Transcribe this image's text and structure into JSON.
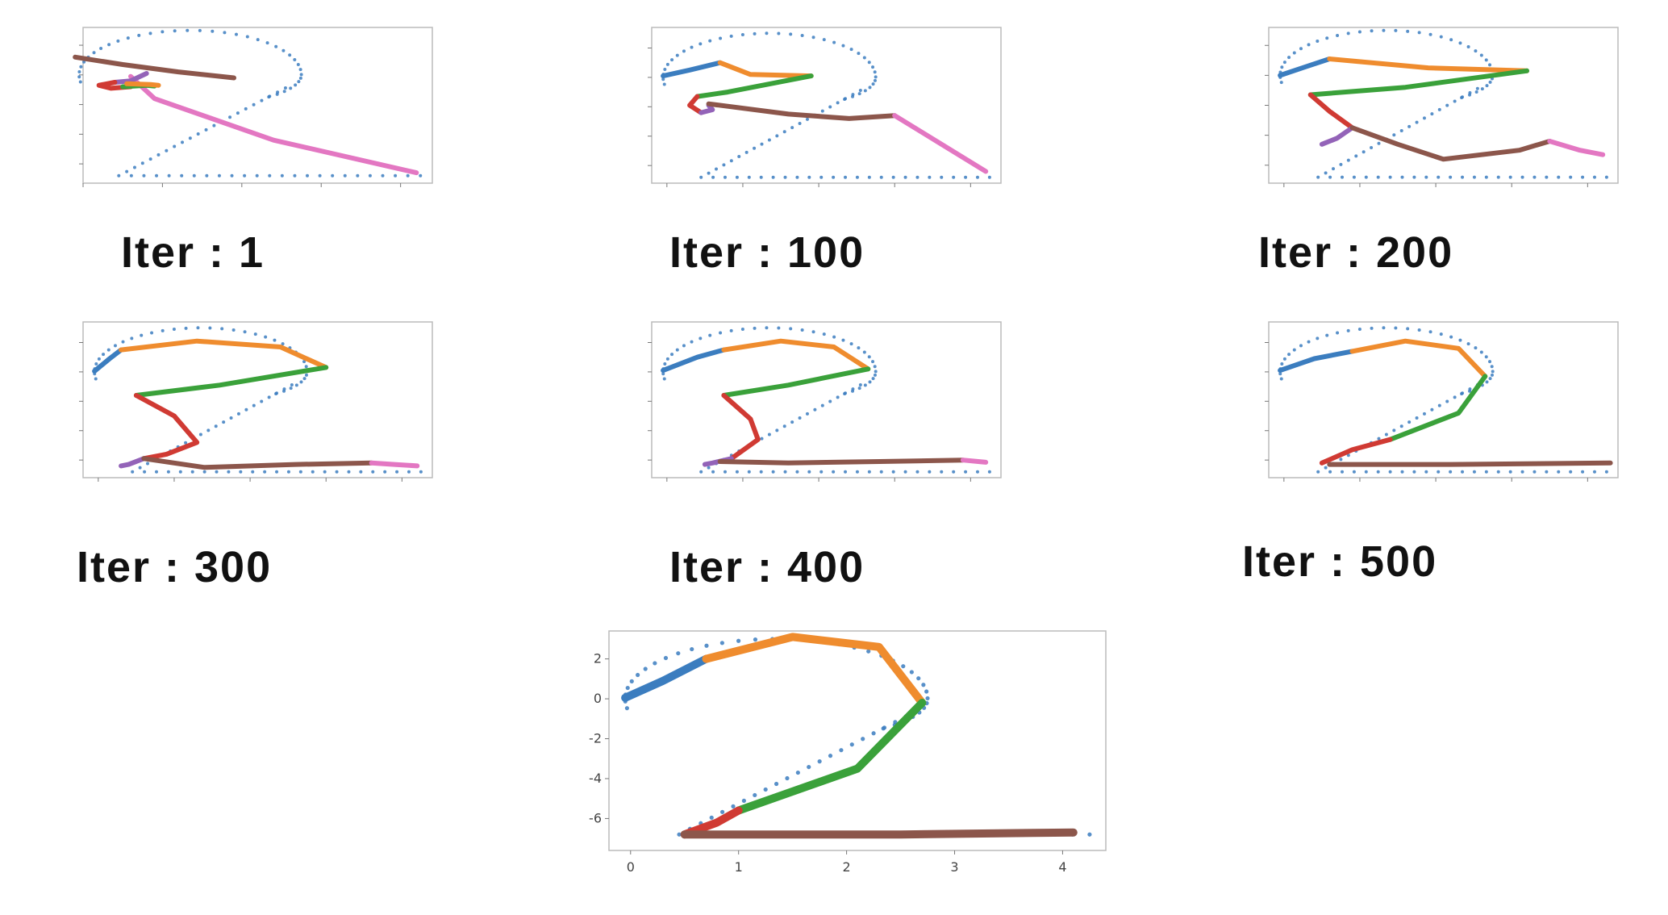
{
  "colors": {
    "target": "#3b7dbf",
    "seg1": "#3b7dbf",
    "seg2": "#ef8c2e",
    "seg3": "#3aa13a",
    "seg4": "#d03a33",
    "seg5": "#9363b8",
    "seg6": "#8c564b",
    "seg7": "#e377c2"
  },
  "chart_data": [
    {
      "type": "line",
      "caption": "Iter : 1",
      "xlim": [
        0,
        4.4
      ],
      "ylim": [
        -7.3,
        3.2
      ],
      "series": [
        {
          "color": "seg7",
          "points": [
            [
              0.6,
              -0.1
            ],
            [
              0.9,
              -1.6
            ],
            [
              2.4,
              -4.4
            ],
            [
              4.2,
              -6.6
            ]
          ]
        },
        {
          "color": "seg6",
          "points": [
            [
              -0.1,
              1.2
            ],
            [
              0.5,
              0.7
            ],
            [
              1.2,
              0.2
            ],
            [
              1.9,
              -0.2
            ]
          ]
        },
        {
          "color": "seg5",
          "points": [
            [
              0.8,
              0.1
            ],
            [
              0.6,
              -0.4
            ],
            [
              0.4,
              -0.5
            ]
          ]
        },
        {
          "color": "seg4",
          "points": [
            [
              0.4,
              -0.5
            ],
            [
              0.2,
              -0.7
            ],
            [
              0.35,
              -0.9
            ],
            [
              0.6,
              -0.8
            ]
          ]
        },
        {
          "color": "seg3",
          "points": [
            [
              0.5,
              -0.8
            ],
            [
              0.8,
              -0.7
            ],
            [
              0.9,
              -0.75
            ]
          ]
        },
        {
          "color": "seg2",
          "points": [
            [
              0.55,
              -0.6
            ],
            [
              0.85,
              -0.65
            ],
            [
              0.95,
              -0.7
            ]
          ]
        }
      ]
    },
    {
      "type": "line",
      "caption": "Iter : 100",
      "xlim": [
        -0.2,
        4.4
      ],
      "ylim": [
        -7.2,
        3.4
      ],
      "series": [
        {
          "color": "seg1",
          "points": [
            [
              -0.05,
              0.1
            ],
            [
              0.3,
              0.5
            ],
            [
              0.7,
              1.0
            ]
          ]
        },
        {
          "color": "seg2",
          "points": [
            [
              0.7,
              1.0
            ],
            [
              1.1,
              0.2
            ],
            [
              1.9,
              0.1
            ]
          ]
        },
        {
          "color": "seg3",
          "points": [
            [
              1.9,
              0.1
            ],
            [
              0.8,
              -1.0
            ],
            [
              0.4,
              -1.3
            ]
          ]
        },
        {
          "color": "seg4",
          "points": [
            [
              0.4,
              -1.3
            ],
            [
              0.3,
              -1.9
            ],
            [
              0.45,
              -2.4
            ]
          ]
        },
        {
          "color": "seg5",
          "points": [
            [
              0.45,
              -2.4
            ],
            [
              0.6,
              -2.2
            ],
            [
              0.55,
              -1.9
            ]
          ]
        },
        {
          "color": "seg6",
          "points": [
            [
              0.55,
              -1.8
            ],
            [
              1.6,
              -2.5
            ],
            [
              2.4,
              -2.8
            ],
            [
              3.0,
              -2.6
            ]
          ]
        },
        {
          "color": "seg7",
          "points": [
            [
              3.0,
              -2.6
            ],
            [
              3.6,
              -4.5
            ],
            [
              4.2,
              -6.4
            ]
          ]
        }
      ]
    },
    {
      "type": "line",
      "caption": "Iter : 200",
      "xlim": [
        -0.2,
        4.4
      ],
      "ylim": [
        -7.2,
        3.2
      ],
      "series": [
        {
          "color": "seg1",
          "points": [
            [
              -0.05,
              0.0
            ],
            [
              0.3,
              0.6
            ],
            [
              0.6,
              1.1
            ]
          ]
        },
        {
          "color": "seg2",
          "points": [
            [
              0.6,
              1.1
            ],
            [
              1.9,
              0.5
            ],
            [
              3.2,
              0.3
            ]
          ]
        },
        {
          "color": "seg3",
          "points": [
            [
              3.2,
              0.3
            ],
            [
              1.6,
              -0.8
            ],
            [
              0.35,
              -1.3
            ]
          ]
        },
        {
          "color": "seg4",
          "points": [
            [
              0.35,
              -1.3
            ],
            [
              0.6,
              -2.4
            ],
            [
              0.9,
              -3.5
            ]
          ]
        },
        {
          "color": "seg5",
          "points": [
            [
              0.9,
              -3.5
            ],
            [
              0.7,
              -4.2
            ],
            [
              0.5,
              -4.6
            ]
          ]
        },
        {
          "color": "seg6",
          "points": [
            [
              0.9,
              -3.5
            ],
            [
              1.5,
              -4.6
            ],
            [
              2.1,
              -5.6
            ],
            [
              3.1,
              -5.0
            ],
            [
              3.5,
              -4.4
            ]
          ]
        },
        {
          "color": "seg7",
          "points": [
            [
              3.5,
              -4.4
            ],
            [
              3.9,
              -5.0
            ],
            [
              4.2,
              -5.3
            ]
          ]
        }
      ]
    },
    {
      "type": "line",
      "caption": "Iter : 300",
      "xlim": [
        -0.2,
        4.4
      ],
      "ylim": [
        -7.2,
        3.4
      ],
      "series": [
        {
          "color": "seg1",
          "points": [
            [
              -0.05,
              0.05
            ],
            [
              0.15,
              0.9
            ],
            [
              0.3,
              1.5
            ]
          ]
        },
        {
          "color": "seg2",
          "points": [
            [
              0.3,
              1.5
            ],
            [
              1.3,
              2.1
            ],
            [
              2.4,
              1.7
            ],
            [
              3.0,
              0.3
            ]
          ]
        },
        {
          "color": "seg3",
          "points": [
            [
              3.0,
              0.3
            ],
            [
              1.6,
              -0.9
            ],
            [
              0.5,
              -1.6
            ]
          ]
        },
        {
          "color": "seg4",
          "points": [
            [
              0.5,
              -1.6
            ],
            [
              1.0,
              -3.0
            ],
            [
              1.3,
              -4.8
            ],
            [
              0.9,
              -5.6
            ],
            [
              0.6,
              -5.9
            ]
          ]
        },
        {
          "color": "seg5",
          "points": [
            [
              0.6,
              -5.9
            ],
            [
              0.4,
              -6.3
            ],
            [
              0.3,
              -6.4
            ]
          ]
        },
        {
          "color": "seg6",
          "points": [
            [
              0.6,
              -5.9
            ],
            [
              1.4,
              -6.5
            ],
            [
              2.6,
              -6.3
            ],
            [
              3.6,
              -6.2
            ]
          ]
        },
        {
          "color": "seg7",
          "points": [
            [
              3.6,
              -6.2
            ],
            [
              3.9,
              -6.3
            ],
            [
              4.2,
              -6.4
            ]
          ]
        }
      ]
    },
    {
      "type": "line",
      "caption": "Iter : 400",
      "xlim": [
        -0.2,
        4.4
      ],
      "ylim": [
        -7.2,
        3.4
      ],
      "series": [
        {
          "color": "seg1",
          "points": [
            [
              -0.05,
              0.1
            ],
            [
              0.4,
              1.0
            ],
            [
              0.75,
              1.5
            ]
          ]
        },
        {
          "color": "seg2",
          "points": [
            [
              0.75,
              1.5
            ],
            [
              1.5,
              2.1
            ],
            [
              2.2,
              1.7
            ],
            [
              2.65,
              0.2
            ]
          ]
        },
        {
          "color": "seg3",
          "points": [
            [
              2.65,
              0.2
            ],
            [
              1.6,
              -0.9
            ],
            [
              0.75,
              -1.6
            ]
          ]
        },
        {
          "color": "seg4",
          "points": [
            [
              0.75,
              -1.6
            ],
            [
              1.1,
              -3.2
            ],
            [
              1.2,
              -4.6
            ],
            [
              0.85,
              -5.9
            ]
          ]
        },
        {
          "color": "seg5",
          "points": [
            [
              0.85,
              -5.9
            ],
            [
              0.6,
              -6.2
            ],
            [
              0.5,
              -6.3
            ]
          ]
        },
        {
          "color": "seg6",
          "points": [
            [
              0.7,
              -6.1
            ],
            [
              1.6,
              -6.2
            ],
            [
              2.8,
              -6.1
            ],
            [
              3.9,
              -6.0
            ]
          ]
        },
        {
          "color": "seg7",
          "points": [
            [
              3.9,
              -6.0
            ],
            [
              4.1,
              -6.1
            ],
            [
              4.2,
              -6.15
            ]
          ]
        }
      ]
    },
    {
      "type": "line",
      "caption": "Iter : 500",
      "xlim": [
        -0.2,
        4.4
      ],
      "ylim": [
        -7.2,
        3.4
      ],
      "series": [
        {
          "color": "seg1",
          "points": [
            [
              -0.05,
              0.1
            ],
            [
              0.4,
              0.9
            ],
            [
              0.9,
              1.4
            ]
          ]
        },
        {
          "color": "seg2",
          "points": [
            [
              0.9,
              1.4
            ],
            [
              1.6,
              2.1
            ],
            [
              2.3,
              1.6
            ],
            [
              2.65,
              -0.3
            ]
          ]
        },
        {
          "color": "seg3",
          "points": [
            [
              2.65,
              -0.3
            ],
            [
              2.3,
              -2.8
            ],
            [
              1.4,
              -4.6
            ]
          ]
        },
        {
          "color": "seg4",
          "points": [
            [
              1.4,
              -4.6
            ],
            [
              0.9,
              -5.3
            ],
            [
              0.5,
              -6.2
            ]
          ]
        },
        {
          "color": "seg6",
          "points": [
            [
              0.6,
              -6.3
            ],
            [
              2.2,
              -6.3
            ],
            [
              4.3,
              -6.2
            ]
          ]
        }
      ]
    },
    {
      "type": "line",
      "caption": "",
      "xlim": [
        -0.2,
        4.4
      ],
      "ylim": [
        -7.6,
        3.4
      ],
      "xticks": [
        "0",
        "1",
        "2",
        "3",
        "4"
      ],
      "yticks": [
        "2",
        "0",
        "-2",
        "-4",
        "-6"
      ],
      "series": [
        {
          "color": "seg1",
          "points": [
            [
              -0.05,
              0.05
            ],
            [
              0.3,
              0.9
            ],
            [
              0.7,
              2.0
            ]
          ]
        },
        {
          "color": "seg2",
          "points": [
            [
              0.7,
              2.0
            ],
            [
              1.5,
              3.1
            ],
            [
              2.3,
              2.6
            ],
            [
              2.7,
              -0.2
            ]
          ]
        },
        {
          "color": "seg3",
          "points": [
            [
              2.7,
              -0.2
            ],
            [
              2.1,
              -3.5
            ],
            [
              1.0,
              -5.6
            ]
          ]
        },
        {
          "color": "seg4",
          "points": [
            [
              1.0,
              -5.6
            ],
            [
              0.8,
              -6.2
            ],
            [
              0.5,
              -6.8
            ]
          ]
        },
        {
          "color": "seg6",
          "points": [
            [
              0.5,
              -6.8
            ],
            [
              2.5,
              -6.8
            ],
            [
              4.1,
              -6.7
            ]
          ]
        }
      ]
    }
  ]
}
